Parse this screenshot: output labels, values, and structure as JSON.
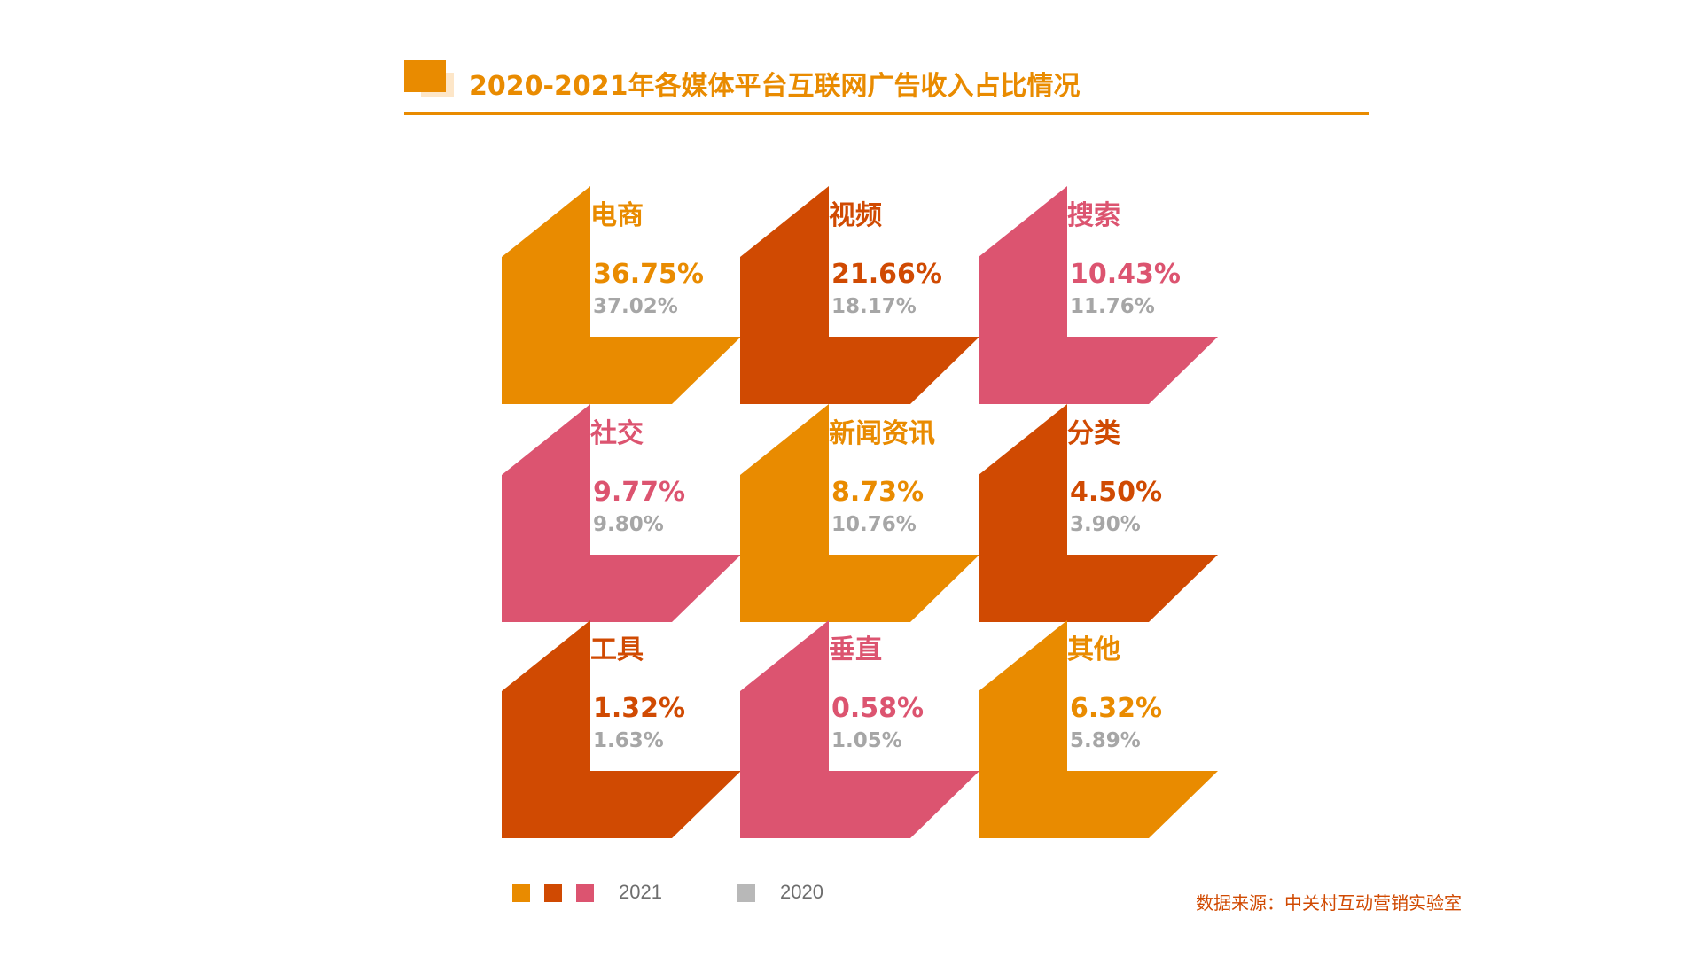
{
  "header": {
    "title": "2020-2021年各媒体平台互联网广告收入占比情况"
  },
  "colors": {
    "orange": "#e98b00",
    "dark_orange": "#d04a02",
    "pink": "#dc5470",
    "gray": "#a6a6a6"
  },
  "legend": {
    "label_2021": "2021",
    "label_2020": "2020",
    "swatches_2021": [
      "#e98b00",
      "#d04a02",
      "#dc5470"
    ],
    "swatch_2020": "#b8b8b8"
  },
  "source": "数据来源：中关村互动营销实验室",
  "chart_data": {
    "type": "table",
    "title": "2020-2021年各媒体平台互联网广告收入占比情况",
    "series": [
      {
        "name": "2021",
        "values": [
          36.75,
          21.66,
          10.43,
          9.77,
          8.73,
          4.5,
          1.32,
          0.58,
          6.32
        ]
      },
      {
        "name": "2020",
        "values": [
          37.02,
          18.17,
          11.76,
          9.8,
          10.76,
          3.9,
          1.63,
          1.05,
          5.89
        ]
      }
    ],
    "categories": [
      "电商",
      "视频",
      "搜索",
      "社交",
      "新闻资讯",
      "分类",
      "工具",
      "垂直",
      "其他"
    ],
    "tiles": [
      {
        "category": "电商",
        "v2021": "36.75%",
        "v2020": "37.02%",
        "color": "#e98b00"
      },
      {
        "category": "视频",
        "v2021": "21.66%",
        "v2020": "18.17%",
        "color": "#d04a02"
      },
      {
        "category": "搜索",
        "v2021": "10.43%",
        "v2020": "11.76%",
        "color": "#dc5470"
      },
      {
        "category": "社交",
        "v2021": "9.77%",
        "v2020": "9.80%",
        "color": "#dc5470"
      },
      {
        "category": "新闻资讯",
        "v2021": "8.73%",
        "v2020": "10.76%",
        "color": "#e98b00"
      },
      {
        "category": "分类",
        "v2021": "4.50%",
        "v2020": "3.90%",
        "color": "#d04a02"
      },
      {
        "category": "工具",
        "v2021": "1.32%",
        "v2020": "1.63%",
        "color": "#d04a02"
      },
      {
        "category": "垂直",
        "v2021": "0.58%",
        "v2020": "1.05%",
        "color": "#dc5470"
      },
      {
        "category": "其他",
        "v2021": "6.32%",
        "v2020": "5.89%",
        "color": "#e98b00"
      }
    ]
  }
}
